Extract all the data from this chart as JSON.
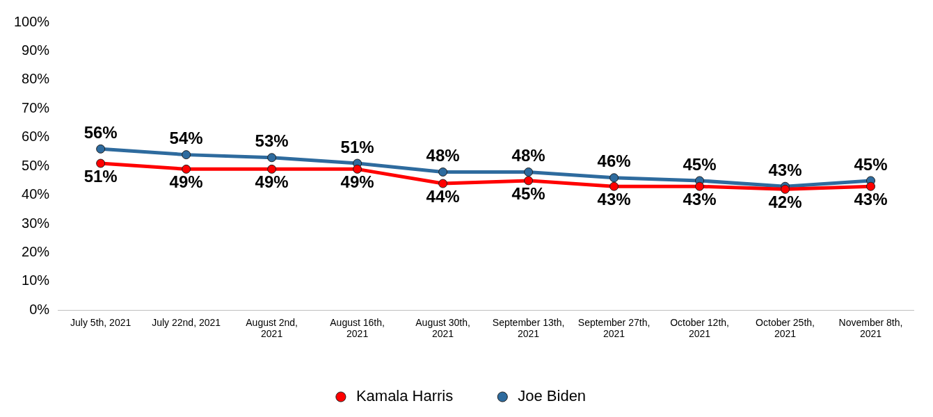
{
  "chart_data": {
    "type": "line",
    "categories": [
      "July 5th, 2021",
      "July 22nd, 2021",
      "August 2nd, 2021",
      "August 16th, 2021",
      "August 30th, 2021",
      "September 13th, 2021",
      "September 27th, 2021",
      "October 12th, 2021",
      "October 25th, 2021",
      "November 8th, 2021"
    ],
    "series": [
      {
        "name": "Kamala Harris",
        "color": "#ff0000",
        "values": [
          51,
          49,
          49,
          49,
          44,
          45,
          43,
          43,
          42,
          43
        ],
        "value_labels": [
          "51%",
          "49%",
          "49%",
          "49%",
          "44%",
          "45%",
          "43%",
          "43%",
          "42%",
          "43%"
        ]
      },
      {
        "name": "Joe Biden",
        "color": "#2e6b9e",
        "values": [
          56,
          54,
          53,
          51,
          48,
          48,
          46,
          45,
          43,
          45
        ],
        "value_labels": [
          "56%",
          "54%",
          "53%",
          "51%",
          "48%",
          "48%",
          "46%",
          "45%",
          "43%",
          "45%"
        ]
      }
    ],
    "ylim": [
      0,
      100
    ],
    "yticks": [
      {
        "value": 0,
        "label": "0%"
      },
      {
        "value": 10,
        "label": "10%"
      },
      {
        "value": 20,
        "label": "20%"
      },
      {
        "value": 30,
        "label": "30%"
      },
      {
        "value": 40,
        "label": "40%"
      },
      {
        "value": 50,
        "label": "50%"
      },
      {
        "value": 60,
        "label": "60%"
      },
      {
        "value": 70,
        "label": "70%"
      },
      {
        "value": 80,
        "label": "80%"
      },
      {
        "value": 90,
        "label": "90%"
      },
      {
        "value": 100,
        "label": "100%"
      }
    ],
    "grid": false,
    "legend": "bottom",
    "marker": "circle",
    "line_style": "solid"
  }
}
